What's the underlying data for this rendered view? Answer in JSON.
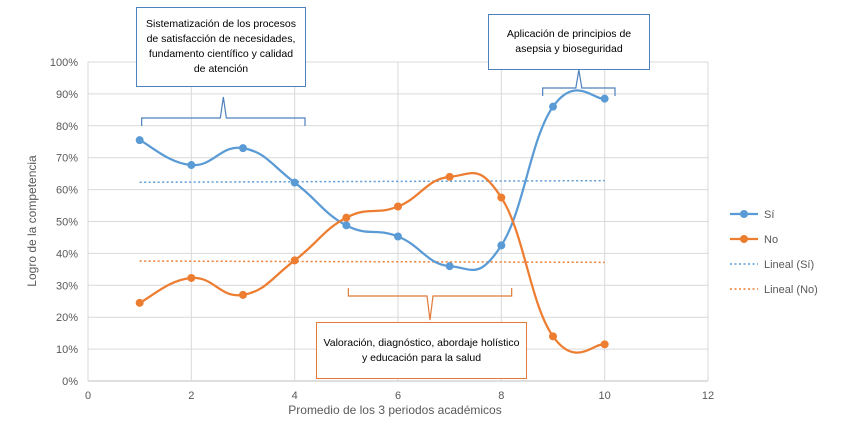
{
  "chart_data": {
    "type": "line",
    "xlabel": "Promedio de los 3 periodos académicos",
    "ylabel": "Logro de la competencia",
    "xlim": [
      0,
      12
    ],
    "ylim": [
      0,
      1
    ],
    "x_ticks": [
      "0",
      "2",
      "4",
      "6",
      "8",
      "10",
      "12"
    ],
    "y_ticks": [
      "0%",
      "10%",
      "20%",
      "30%",
      "40%",
      "50%",
      "60%",
      "70%",
      "80%",
      "90%",
      "100%"
    ],
    "grid": "vertical and horizontal",
    "legend_position": "right",
    "series": [
      {
        "name": "Sí",
        "color": "#5b9bd5",
        "style": "smooth-line-markers",
        "x": [
          1,
          2,
          3,
          4,
          5,
          6,
          7,
          8,
          9,
          10
        ],
        "y": [
          0.755,
          0.677,
          0.73,
          0.622,
          0.488,
          0.453,
          0.36,
          0.425,
          0.86,
          0.885
        ]
      },
      {
        "name": "No",
        "color": "#ed7d31",
        "style": "smooth-line-markers",
        "x": [
          1,
          2,
          3,
          4,
          5,
          6,
          7,
          8,
          9,
          10
        ],
        "y": [
          0.245,
          0.323,
          0.27,
          0.378,
          0.512,
          0.547,
          0.64,
          0.575,
          0.14,
          0.115
        ]
      },
      {
        "name": "Lineal (Sí)",
        "color": "#5b9bd5",
        "style": "dotted-trendline",
        "x": [
          1,
          10
        ],
        "y": [
          0.623,
          0.628
        ]
      },
      {
        "name": "Lineal (No)",
        "color": "#ed7d31",
        "style": "dotted-trendline",
        "x": [
          1,
          10
        ],
        "y": [
          0.376,
          0.372
        ]
      }
    ],
    "annotations": [
      {
        "text": "Sistematización de los procesos de satisfacción de necesidades, fundamento científico y calidad de atención",
        "x_range": [
          1,
          4.2
        ],
        "border_color": "#4f81bd"
      },
      {
        "text": "Aplicación de principios de asepsia y bioseguridad",
        "x_range": [
          8.8,
          10.2
        ],
        "border_color": "#4f81bd"
      },
      {
        "text": "Valoración, diagnóstico, abordaje holístico y educación para la salud",
        "x_range": [
          5,
          8.2
        ],
        "border_color": "#e07b39"
      }
    ]
  }
}
